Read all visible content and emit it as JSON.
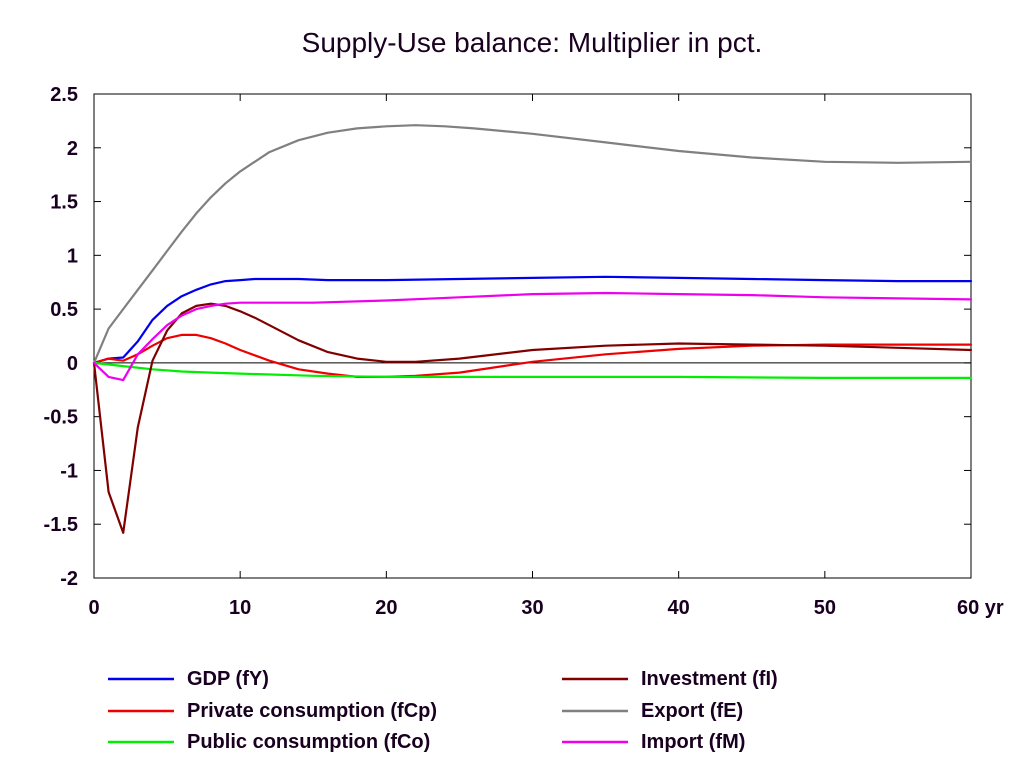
{
  "chart_data": {
    "type": "line",
    "title": "Supply-Use balance: Multiplier in pct.",
    "xlabel": "",
    "ylabel": "",
    "x_unit_label": "yr",
    "xlim": [
      0,
      60
    ],
    "ylim": [
      -2,
      2.5
    ],
    "x_ticks": [
      0,
      10,
      20,
      30,
      40,
      50,
      60
    ],
    "x_tick_labels": [
      "0",
      "10",
      "20",
      "30",
      "40",
      "50",
      "60 yr"
    ],
    "y_ticks": [
      2.5,
      2,
      1.5,
      1,
      0.5,
      0,
      -0.5,
      -1,
      -1.5,
      -2
    ],
    "y_tick_labels": [
      "2.5",
      "2",
      "1.5",
      "1",
      "0.5",
      "0",
      "-0.5",
      "-1",
      "-1.5",
      "-2"
    ],
    "grid": false,
    "zero_line": true,
    "legend_position": "bottom",
    "series": [
      {
        "name": "GDP (fY)",
        "color": "#0000ee",
        "x": [
          0,
          1,
          2,
          3,
          4,
          5,
          6,
          7,
          8,
          9,
          10,
          11,
          12,
          14,
          16,
          20,
          25,
          30,
          35,
          40,
          45,
          50,
          55,
          60
        ],
        "y": [
          0,
          0.04,
          0.05,
          0.2,
          0.4,
          0.53,
          0.62,
          0.68,
          0.73,
          0.76,
          0.77,
          0.78,
          0.78,
          0.78,
          0.77,
          0.77,
          0.78,
          0.79,
          0.8,
          0.79,
          0.78,
          0.77,
          0.76,
          0.76
        ]
      },
      {
        "name": "Private consumption (fCp)",
        "color": "#ee0000",
        "x": [
          0,
          1,
          2,
          3,
          4,
          5,
          6,
          7,
          8,
          9,
          10,
          12,
          14,
          16,
          18,
          20,
          22,
          25,
          30,
          35,
          40,
          45,
          50,
          55,
          60
        ],
        "y": [
          0,
          0.04,
          0.02,
          0.08,
          0.16,
          0.23,
          0.26,
          0.26,
          0.23,
          0.18,
          0.12,
          0.02,
          -0.06,
          -0.1,
          -0.13,
          -0.13,
          -0.12,
          -0.09,
          0.01,
          0.08,
          0.13,
          0.16,
          0.17,
          0.17,
          0.17
        ]
      },
      {
        "name": "Public consumption (fCo)",
        "color": "#00ee00",
        "x": [
          0,
          2,
          4,
          6,
          8,
          10,
          15,
          20,
          25,
          30,
          40,
          50,
          60
        ],
        "y": [
          0,
          -0.03,
          -0.06,
          -0.08,
          -0.09,
          -0.1,
          -0.12,
          -0.13,
          -0.13,
          -0.13,
          -0.13,
          -0.14,
          -0.14
        ]
      },
      {
        "name": "Investment (fI)",
        "color": "#800000",
        "x": [
          0,
          1,
          2,
          3,
          4,
          5,
          6,
          7,
          8,
          9,
          10,
          11,
          12,
          14,
          16,
          18,
          20,
          22,
          25,
          30,
          35,
          40,
          45,
          50,
          55,
          60
        ],
        "y": [
          0,
          -1.2,
          -1.58,
          -0.6,
          0.02,
          0.3,
          0.46,
          0.53,
          0.55,
          0.53,
          0.48,
          0.42,
          0.35,
          0.21,
          0.1,
          0.04,
          0.01,
          0.01,
          0.04,
          0.12,
          0.16,
          0.18,
          0.17,
          0.16,
          0.14,
          0.12
        ]
      },
      {
        "name": "Export (fE)",
        "color": "#808080",
        "x": [
          0,
          1,
          2,
          3,
          4,
          5,
          6,
          7,
          8,
          9,
          10,
          12,
          14,
          16,
          18,
          20,
          22,
          24,
          26,
          30,
          35,
          40,
          45,
          50,
          55,
          60
        ],
        "y": [
          0,
          0.32,
          0.5,
          0.68,
          0.86,
          1.04,
          1.22,
          1.39,
          1.54,
          1.67,
          1.78,
          1.96,
          2.07,
          2.14,
          2.18,
          2.2,
          2.21,
          2.2,
          2.18,
          2.13,
          2.05,
          1.97,
          1.91,
          1.87,
          1.86,
          1.87
        ]
      },
      {
        "name": "Import (fM)",
        "color": "#ee00ee",
        "x": [
          0,
          1,
          2,
          3,
          4,
          5,
          6,
          7,
          8,
          9,
          10,
          12,
          15,
          20,
          25,
          30,
          35,
          40,
          45,
          50,
          55,
          60
        ],
        "y": [
          0,
          -0.13,
          -0.16,
          0.08,
          0.22,
          0.35,
          0.44,
          0.5,
          0.53,
          0.55,
          0.56,
          0.56,
          0.56,
          0.58,
          0.61,
          0.64,
          0.65,
          0.64,
          0.63,
          0.61,
          0.6,
          0.59
        ]
      }
    ]
  }
}
